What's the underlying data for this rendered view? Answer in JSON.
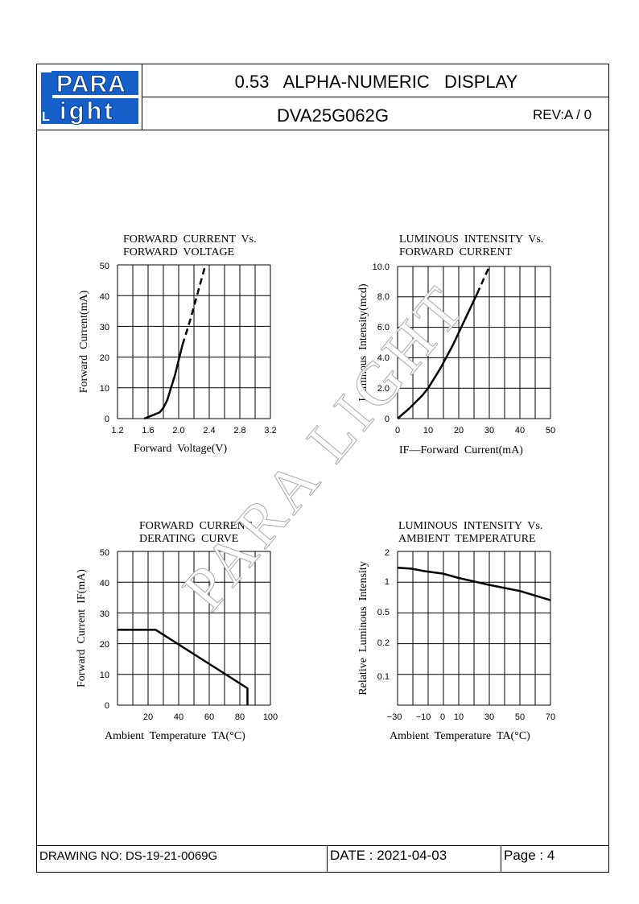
{
  "header": {
    "logo_top": "PARA",
    "logo_bottom": "ight",
    "logo_letter": "L",
    "title": "0.53   ALPHA-NUMERIC   DISPLAY",
    "part_no": "DVA25G062G",
    "rev": "REV:A / 0"
  },
  "watermark": "PARA LIGHT",
  "footer": {
    "drawing_no": "DRAWING NO: DS-19-21-0069G",
    "date": "DATE : 2021-04-03",
    "page": "Page : 4"
  },
  "chart_data": [
    {
      "type": "line",
      "title": "FORWARD  CURRENT  Vs.\nFORWARD  VOLTAGE",
      "xlabel": "Forward  Voltage(V)",
      "ylabel": "Forward  Current(mA)",
      "xticks": [
        "1.2",
        "1.6",
        "2.0",
        "2.4",
        "2.8",
        "3.2"
      ],
      "yticks": [
        "0",
        "10",
        "20",
        "30",
        "40",
        "50"
      ],
      "xlim": [
        1.2,
        3.2
      ],
      "ylim": [
        0,
        50
      ],
      "grid": true,
      "series": [
        {
          "style": "solid",
          "x": [
            1.55,
            1.65,
            1.75,
            1.8,
            1.85,
            1.9,
            1.95,
            2.0,
            2.05
          ],
          "y": [
            0,
            1,
            2,
            3.5,
            6,
            10,
            14,
            19,
            24
          ]
        },
        {
          "style": "dashed",
          "x": [
            2.05,
            2.15,
            2.25,
            2.35
          ],
          "y": [
            24,
            32,
            41,
            50
          ]
        }
      ]
    },
    {
      "type": "line",
      "title": "LUMINOUS  INTENSITY  Vs.\nFORWARD  CURRENT",
      "xlabel": "IF—Forward  Current(mA)",
      "ylabel": "Luminous  Intensity(mcd)",
      "xticks": [
        "0",
        "10",
        "20",
        "30",
        "40",
        "50"
      ],
      "yticks": [
        "0",
        "2.0",
        "4.0",
        "6.0",
        "8.0",
        "10.0"
      ],
      "xlim": [
        0,
        50
      ],
      "ylim": [
        0,
        10
      ],
      "grid": true,
      "series": [
        {
          "style": "solid",
          "x": [
            0,
            4,
            8,
            10,
            14,
            18,
            22,
            26
          ],
          "y": [
            0,
            0.7,
            1.5,
            2.0,
            3.3,
            4.8,
            6.5,
            8.2
          ]
        },
        {
          "style": "dashed",
          "x": [
            26,
            28,
            30
          ],
          "y": [
            8.2,
            9.1,
            10
          ]
        }
      ]
    },
    {
      "type": "line",
      "title": "FORWARD  CURRENT\nDERATING  CURVE",
      "xlabel": "Ambient  Temperature  TA(°C)",
      "ylabel": "Forward  Current  IF(mA)",
      "xticks": [
        "20",
        "40",
        "60",
        "80",
        "100"
      ],
      "yticks": [
        "0",
        "10",
        "20",
        "30",
        "40",
        "50"
      ],
      "xlim": [
        0,
        100
      ],
      "ylim": [
        0,
        50
      ],
      "grid": true,
      "series": [
        {
          "style": "solid",
          "x": [
            0,
            25,
            85,
            85
          ],
          "y": [
            24.5,
            24.5,
            5.5,
            0
          ]
        }
      ]
    },
    {
      "type": "line",
      "title": "LUMINOUS  INTENSITY  Vs.\nAMBIENT  TEMPERATURE",
      "xlabel": "Ambient  Temperature  TA(°C)",
      "ylabel": "Relative  Luminous  Intensity",
      "xticks": [
        "−30",
        "−10",
        "0",
        "10",
        "30",
        "50",
        "70"
      ],
      "yticks": [
        "0.1",
        "0.2",
        "0.5",
        "1",
        "2"
      ],
      "xlim": [
        -30,
        70
      ],
      "ylim": [
        0.05,
        2
      ],
      "grid": true,
      "series": [
        {
          "style": "solid",
          "x": [
            -30,
            -20,
            -10,
            0,
            10,
            30,
            50,
            70
          ],
          "y": [
            1.38,
            1.35,
            1.27,
            1.2,
            1.08,
            0.92,
            0.8,
            0.65
          ]
        }
      ]
    }
  ]
}
